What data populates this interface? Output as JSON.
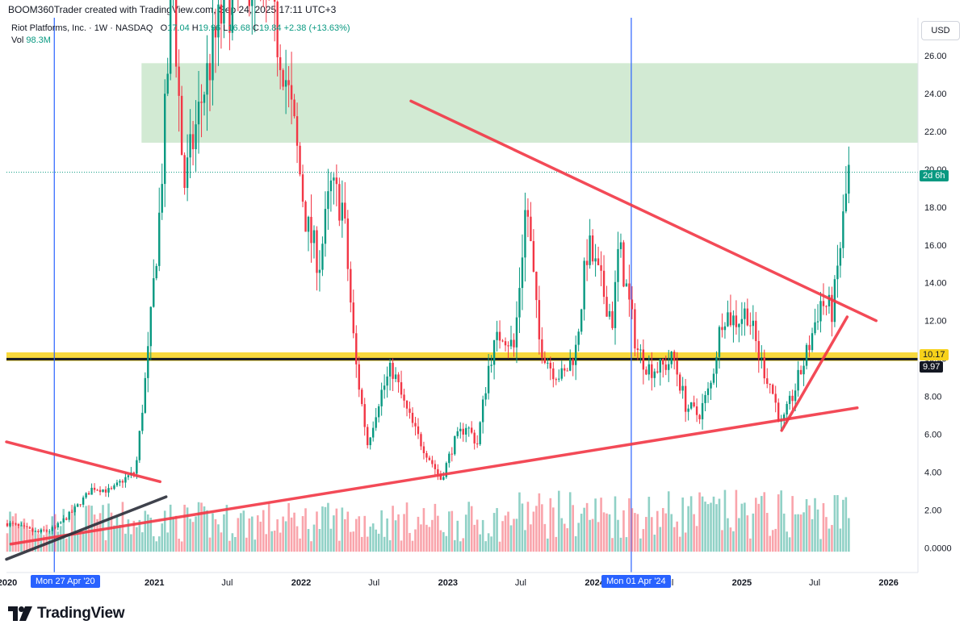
{
  "header": {
    "author_line": "BOOM360Trader created with TradingView.com, Sep 24, 2025 17:11 UTC+3"
  },
  "legend": {
    "symbol": "Riot Platforms, Inc. · 1W · NASDAQ",
    "open_label": "O",
    "open": "17.04",
    "high_label": "H",
    "high": "19.96",
    "low_label": "L",
    "low": "16.68",
    "close_label": "C",
    "close": "19.84",
    "change": "+2.38 (+13.63%)",
    "vol_label": "Vol",
    "vol": "98.3M"
  },
  "currency_button": "USD",
  "price_tags": {
    "current_time": "2d 6h",
    "level_upper": "10.17",
    "level_lower": "9.97"
  },
  "colors": {
    "up": "#089981",
    "down": "#f23645",
    "trendline_red": "#f23645",
    "trendline_black": "#2a2e39",
    "support_yellow": "#f7d21b",
    "zone_green": "#a5d6a7",
    "vline_blue": "#2962ff"
  },
  "date_tags": [
    "Mon 27 Apr '20",
    "Mon 01 Apr '24"
  ],
  "footer": {
    "brand": "TradingView",
    "logo_icon": "tradingview-logo-icon"
  },
  "chart_data": {
    "type": "candlestick",
    "title": "Riot Platforms, Inc. 1W NASDAQ",
    "x_tick_labels": [
      "2020",
      "2021",
      "Jul",
      "2022",
      "Jul",
      "2023",
      "Jul",
      "2024",
      "Jul",
      "2025",
      "Jul",
      "2026"
    ],
    "y_tick_labels": [
      "0.0000",
      "2.00",
      "4.00",
      "6.00",
      "8.00",
      "10.00",
      "12.00",
      "14.00",
      "16.00",
      "18.00",
      "20.00",
      "22.00",
      "24.00",
      "26.00"
    ],
    "ylim": [
      -1.3,
      28
    ],
    "xlim": [
      "2019-12-30",
      "2026-03-15"
    ],
    "price_path": [
      [
        "2020-01-01",
        1.3
      ],
      [
        "2020-03-15",
        0.8
      ],
      [
        "2020-04-27",
        1.0
      ],
      [
        "2020-06-15",
        2.0
      ],
      [
        "2020-08-01",
        3.2
      ],
      [
        "2020-09-15",
        3.0
      ],
      [
        "2020-10-15",
        3.6
      ],
      [
        "2020-11-15",
        4.0
      ],
      [
        "2020-12-15",
        10.0
      ],
      [
        "2021-01-15",
        18.0
      ],
      [
        "2021-02-15",
        30.0
      ],
      [
        "2021-03-15",
        19.0
      ],
      [
        "2021-05-01",
        24.0
      ],
      [
        "2021-06-15",
        28.0
      ],
      [
        "2021-08-01",
        30.0
      ],
      [
        "2021-09-15",
        30.5
      ],
      [
        "2021-11-15",
        26.0
      ],
      [
        "2021-12-15",
        22.0
      ],
      [
        "2022-01-15",
        17.0
      ],
      [
        "2022-02-15",
        15.0
      ],
      [
        "2022-03-15",
        19.0
      ],
      [
        "2022-04-15",
        18.0
      ],
      [
        "2022-05-15",
        10.0
      ],
      [
        "2022-06-15",
        5.5
      ],
      [
        "2022-07-15",
        8.0
      ],
      [
        "2022-08-15",
        9.5
      ],
      [
        "2022-09-15",
        7.5
      ],
      [
        "2022-10-15",
        6.0
      ],
      [
        "2022-12-15",
        3.6
      ],
      [
        "2023-01-15",
        5.5
      ],
      [
        "2023-02-15",
        6.5
      ],
      [
        "2023-03-15",
        5.5
      ],
      [
        "2023-04-15",
        10.0
      ],
      [
        "2023-05-15",
        11.5
      ],
      [
        "2023-06-15",
        10.5
      ],
      [
        "2023-07-15",
        18.5
      ],
      [
        "2023-08-15",
        11.0
      ],
      [
        "2023-09-15",
        9.5
      ],
      [
        "2023-10-15",
        9.0
      ],
      [
        "2023-11-15",
        10.5
      ],
      [
        "2023-12-15",
        16.0
      ],
      [
        "2024-01-15",
        14.0
      ],
      [
        "2024-02-15",
        12.0
      ],
      [
        "2024-03-01",
        16.0
      ],
      [
        "2024-04-15",
        10.5
      ],
      [
        "2024-05-15",
        9.5
      ],
      [
        "2024-06-15",
        9.5
      ],
      [
        "2024-07-15",
        10.0
      ],
      [
        "2024-08-15",
        7.5
      ],
      [
        "2024-09-15",
        7.0
      ],
      [
        "2024-10-15",
        8.5
      ],
      [
        "2024-11-15",
        12.5
      ],
      [
        "2024-12-15",
        12.0
      ],
      [
        "2025-01-15",
        12.5
      ],
      [
        "2025-02-15",
        10.0
      ],
      [
        "2025-03-15",
        8.5
      ],
      [
        "2025-04-10",
        6.4
      ],
      [
        "2025-05-15",
        8.5
      ],
      [
        "2025-06-15",
        10.5
      ],
      [
        "2025-07-15",
        13.0
      ],
      [
        "2025-08-15",
        12.5
      ],
      [
        "2025-09-24",
        19.84
      ]
    ],
    "annotations": {
      "demand_zone": {
        "from": "2020-11-30",
        "to": "2026-03-15",
        "y": [
          21.4,
          25.6
        ]
      },
      "support_band": {
        "y": [
          10.0,
          10.2
        ]
      },
      "horizontal_line": {
        "y": 9.97
      },
      "current_price_line": {
        "y": 19.84
      },
      "vertical_lines": [
        "2020-04-27",
        "2024-04-01"
      ],
      "trendlines": [
        {
          "name": "descending-resistance",
          "color": "red",
          "from": [
            "2022-10-01",
            23.6
          ],
          "to": [
            "2025-12-01",
            12.0
          ]
        },
        {
          "name": "long-term-support",
          "color": "red",
          "from": [
            "2020-01-10",
            0.2
          ],
          "to": [
            "2025-10-15",
            7.4
          ]
        },
        {
          "name": "steep-support",
          "color": "red",
          "from": [
            "2025-04-10",
            6.2
          ],
          "to": [
            "2025-09-20",
            12.2
          ]
        },
        {
          "name": "early-resistance",
          "color": "red",
          "from": [
            "2019-12-30",
            5.6
          ],
          "to": [
            "2021-01-15",
            3.5
          ]
        },
        {
          "name": "early-support",
          "color": "black",
          "from": [
            "2019-12-30",
            -0.6
          ],
          "to": [
            "2021-01-30",
            2.7
          ]
        }
      ]
    }
  }
}
